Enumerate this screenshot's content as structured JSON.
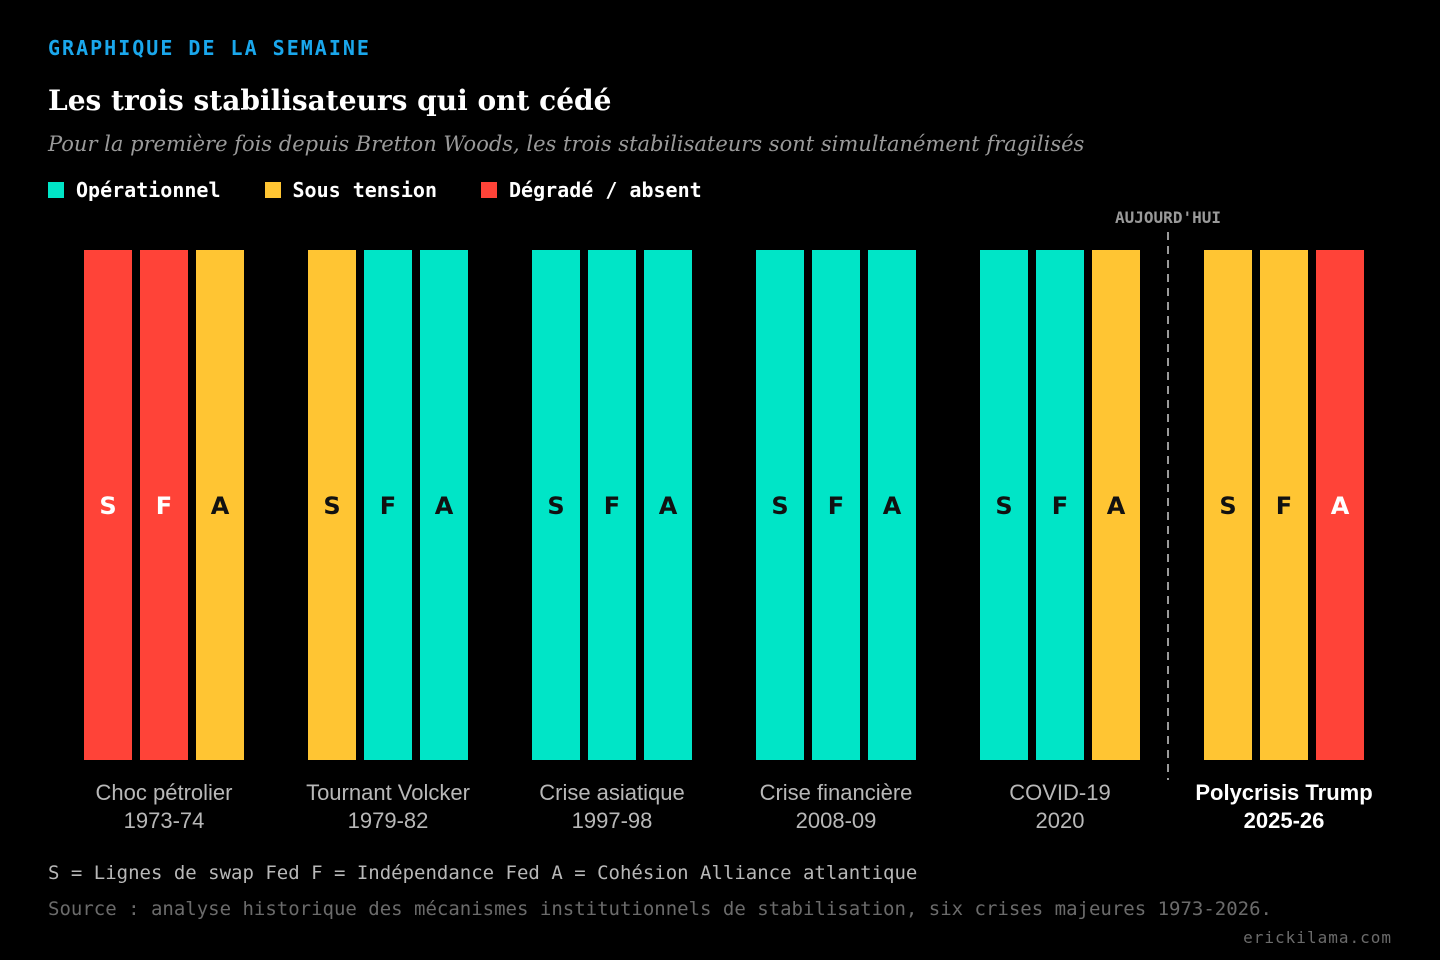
{
  "header": {
    "kicker": "GRAPHIQUE DE LA SEMAINE",
    "title": "Les trois stabilisateurs qui ont cédé",
    "subtitle": "Pour la première fois depuis Bretton Woods, les trois stabilisateurs sont simultanément fragilisés"
  },
  "legend": [
    {
      "label": "Opérationnel",
      "status": "operational",
      "color": "#00e5c7"
    },
    {
      "label": "Sous tension",
      "status": "strained",
      "color": "#ffc533"
    },
    {
      "label": "Dégradé / absent",
      "status": "degraded",
      "color": "#ff4338"
    }
  ],
  "chart_data": {
    "type": "table",
    "title": "Les trois stabilisateurs qui ont cédé",
    "stabilizers": [
      "S",
      "F",
      "A"
    ],
    "today_marker": "AUJOURD'HUI",
    "crises": [
      {
        "name": "Choc pétrolier",
        "period": "1973-74",
        "statuses": [
          "degraded",
          "degraded",
          "strained"
        ]
      },
      {
        "name": "Tournant Volcker",
        "period": "1979-82",
        "statuses": [
          "strained",
          "operational",
          "operational"
        ]
      },
      {
        "name": "Crise asiatique",
        "period": "1997-98",
        "statuses": [
          "operational",
          "operational",
          "operational"
        ]
      },
      {
        "name": "Crise financière",
        "period": "2008-09",
        "statuses": [
          "operational",
          "operational",
          "operational"
        ]
      },
      {
        "name": "COVID-19",
        "period": "2020",
        "statuses": [
          "operational",
          "operational",
          "strained"
        ]
      },
      {
        "name": "Polycrisis Trump",
        "period": "2025-26",
        "statuses": [
          "strained",
          "strained",
          "degraded"
        ],
        "highlight": true
      }
    ]
  },
  "footer": {
    "note": "S = Lignes de swap Fed F = Indépendance Fed A = Cohésion Alliance atlantique",
    "source": "Source : analyse historique des mécanismes institutionnels de stabilisation, six crises majeures 1973-2026.",
    "credit": "erickilama.com"
  }
}
